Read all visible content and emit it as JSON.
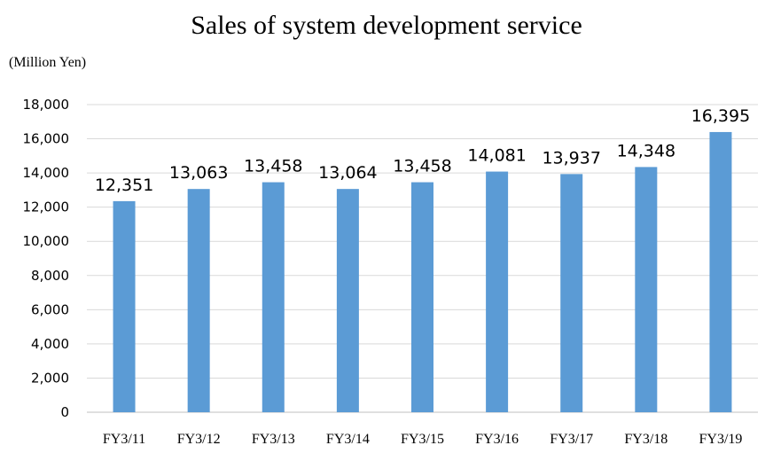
{
  "title": "Sales of system development service",
  "unit_label": "(Million Yen)",
  "colors": {
    "bar": "#5b9bd5",
    "grid": "#d9d9d9",
    "axis": "#bfbfbf"
  },
  "chart_data": {
    "type": "bar",
    "title": "Sales of system development service",
    "xlabel": "",
    "ylabel": "(Million Yen)",
    "categories": [
      "FY3/11",
      "FY3/12",
      "FY3/13",
      "FY3/14",
      "FY3/15",
      "FY3/16",
      "FY3/17",
      "FY3/18",
      "FY3/19"
    ],
    "values": [
      12351,
      13063,
      13458,
      13064,
      13458,
      14081,
      13937,
      14348,
      16395
    ],
    "value_labels": [
      "12,351",
      "13,063",
      "13,458",
      "13,064",
      "13,458",
      "14,081",
      "13,937",
      "14,348",
      "16,395"
    ],
    "ylim": [
      0,
      18000
    ],
    "yticks": [
      0,
      2000,
      4000,
      6000,
      8000,
      10000,
      12000,
      14000,
      16000,
      18000
    ],
    "ytick_labels": [
      "0",
      "2,000",
      "4,000",
      "6,000",
      "8,000",
      "10,000",
      "12,000",
      "14,000",
      "16,000",
      "18,000"
    ],
    "grid": true,
    "legend": "none"
  }
}
